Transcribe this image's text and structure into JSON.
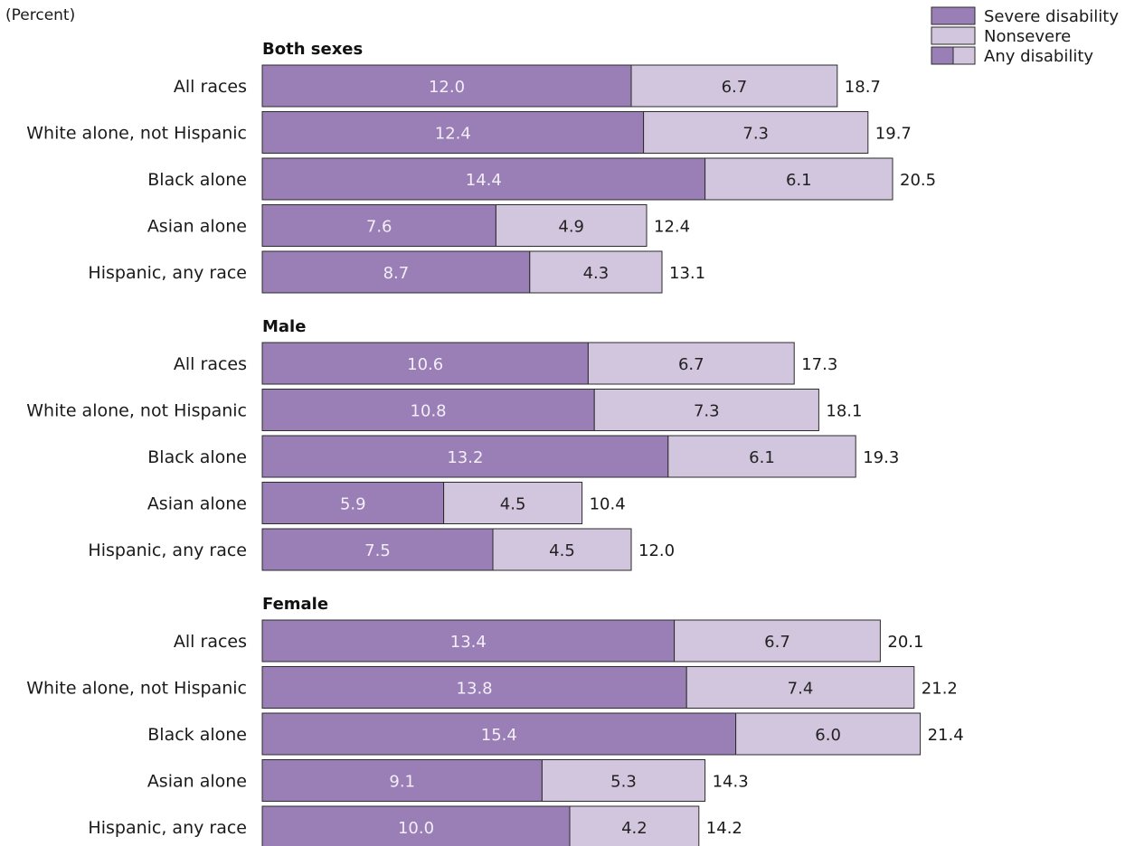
{
  "chart_data": {
    "type": "bar",
    "orientation": "horizontal",
    "stacked": true,
    "unit_label": "(Percent)",
    "xlim": [
      0,
      24
    ],
    "grid": false,
    "legend_position": "top-right",
    "legend": [
      {
        "name": "Severe disability",
        "swatch": "severe"
      },
      {
        "name": "Nonsevere",
        "swatch": "nonsevere"
      },
      {
        "name": "Any disability",
        "swatch": "both"
      }
    ],
    "colors": {
      "severe": "#9a7fb6",
      "nonsevere": "#d2c6df"
    },
    "groups": [
      {
        "title": "Both sexes",
        "rows": [
          {
            "category": "All races",
            "severe": "12.0",
            "nonsevere": "6.7",
            "total": "18.7"
          },
          {
            "category": "White alone, not Hispanic",
            "severe": "12.4",
            "nonsevere": "7.3",
            "total": "19.7"
          },
          {
            "category": "Black alone",
            "severe": "14.4",
            "nonsevere": "6.1",
            "total": "20.5"
          },
          {
            "category": "Asian alone",
            "severe": "7.6",
            "nonsevere": "4.9",
            "total": "12.4"
          },
          {
            "category": "Hispanic, any race",
            "severe": "8.7",
            "nonsevere": "4.3",
            "total": "13.1"
          }
        ]
      },
      {
        "title": "Male",
        "rows": [
          {
            "category": "All races",
            "severe": "10.6",
            "nonsevere": "6.7",
            "total": "17.3"
          },
          {
            "category": "White alone, not Hispanic",
            "severe": "10.8",
            "nonsevere": "7.3",
            "total": "18.1"
          },
          {
            "category": "Black alone",
            "severe": "13.2",
            "nonsevere": "6.1",
            "total": "19.3"
          },
          {
            "category": "Asian alone",
            "severe": "5.9",
            "nonsevere": "4.5",
            "total": "10.4"
          },
          {
            "category": "Hispanic, any race",
            "severe": "7.5",
            "nonsevere": "4.5",
            "total": "12.0"
          }
        ]
      },
      {
        "title": "Female",
        "rows": [
          {
            "category": "All races",
            "severe": "13.4",
            "nonsevere": "6.7",
            "total": "20.1"
          },
          {
            "category": "White alone, not Hispanic",
            "severe": "13.8",
            "nonsevere": "7.4",
            "total": "21.2"
          },
          {
            "category": "Black alone",
            "severe": "15.4",
            "nonsevere": "6.0",
            "total": "21.4"
          },
          {
            "category": "Asian alone",
            "severe": "9.1",
            "nonsevere": "5.3",
            "total": "14.3"
          },
          {
            "category": "Hispanic, any race",
            "severe": "10.0",
            "nonsevere": "4.2",
            "total": "14.2"
          }
        ]
      }
    ]
  }
}
